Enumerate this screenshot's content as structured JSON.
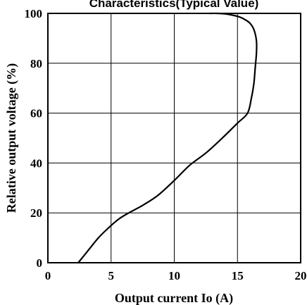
{
  "chart_data": {
    "type": "line",
    "title": "Characteristics(Typical Value)",
    "xlabel": "Output current Io (A)",
    "ylabel": "Relative output voltage (%)",
    "xlim": [
      0,
      20
    ],
    "ylim": [
      0,
      100
    ],
    "xticks": [
      "0",
      "5",
      "10",
      "15",
      "20"
    ],
    "yticks": [
      "0",
      "20",
      "40",
      "60",
      "80",
      "100"
    ],
    "grid": true,
    "series": [
      {
        "x": [
          2.4,
          3.2,
          4.0,
          4.8,
          5.6,
          6.4,
          7.5,
          8.7,
          10.0,
          11.2,
          12.5,
          13.8,
          15.0,
          15.8,
          16.1,
          16.3,
          16.4,
          16.5,
          16.5,
          16.3,
          16.0,
          15.6,
          15.2,
          14.6,
          14.0,
          13.4,
          12.8
        ],
        "y": [
          0,
          5,
          10,
          14,
          17.5,
          20,
          23,
          27,
          33,
          39,
          44,
          50,
          56,
          60,
          66,
          72,
          78,
          84,
          89,
          93.5,
          96,
          97.5,
          98.5,
          99.3,
          99.8,
          100,
          100
        ]
      }
    ]
  }
}
